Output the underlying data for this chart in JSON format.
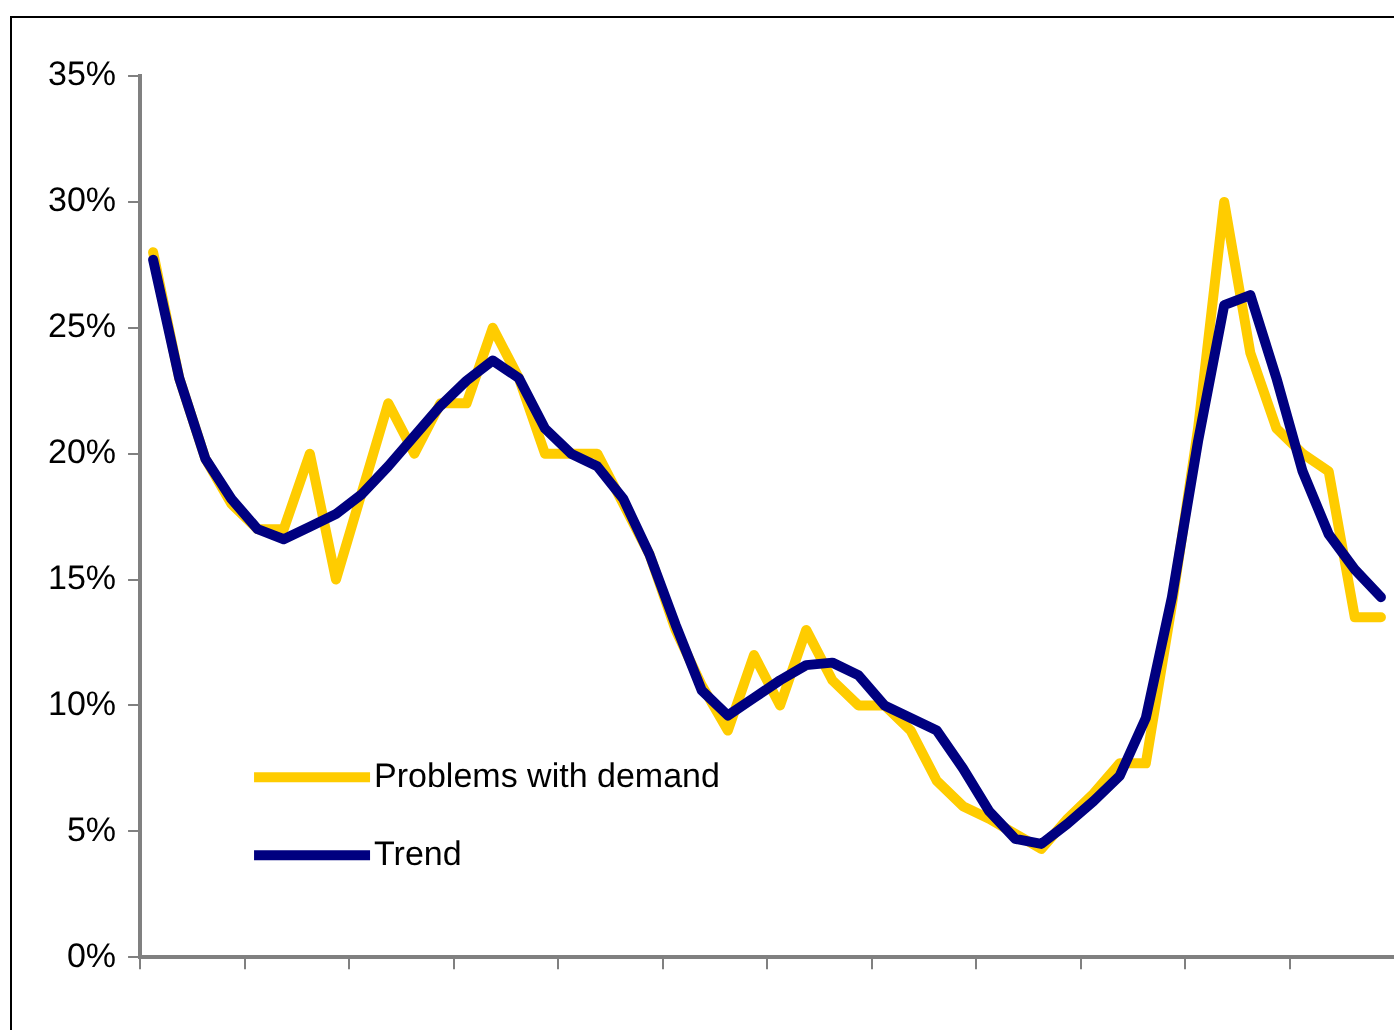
{
  "chart_data": {
    "type": "line",
    "categories": [
      null,
      null,
      null,
      null,
      null,
      null,
      null,
      null,
      null,
      null,
      null,
      null,
      null,
      null,
      null,
      null,
      null,
      null,
      null,
      null,
      null,
      null,
      null,
      null,
      null,
      null,
      null,
      null,
      null,
      null,
      null,
      null,
      null,
      null,
      null,
      null,
      null,
      null,
      null,
      null,
      null,
      null,
      null,
      null,
      null,
      null,
      null,
      null
    ],
    "series": [
      {
        "name": "Problems with demand",
        "color": "#ffcc00",
        "values": [
          28,
          23,
          19.8,
          18,
          17,
          17,
          20,
          15,
          18.5,
          22,
          20,
          22,
          22,
          25,
          23,
          20,
          20,
          20,
          18,
          16,
          13,
          10.8,
          9,
          12,
          10,
          13,
          11,
          10,
          10,
          9,
          7,
          6,
          5.5,
          4.9,
          4.3,
          5.5,
          6.5,
          7.7,
          7.7,
          14,
          21,
          30,
          24,
          21,
          20,
          19.3,
          13.5,
          13.5
        ]
      },
      {
        "name": "Trend",
        "color": "#000080",
        "values": [
          27.7,
          23,
          19.8,
          18.2,
          17,
          16.6,
          17.1,
          17.6,
          18.4,
          19.5,
          20.7,
          21.9,
          22.9,
          23.7,
          23,
          21,
          20,
          19.5,
          18.2,
          16,
          13.2,
          10.6,
          9.6,
          10.3,
          11,
          11.6,
          11.7,
          11.2,
          10,
          9.5,
          9,
          7.5,
          5.8,
          4.7,
          4.5,
          5.3,
          6.2,
          7.2,
          9.5,
          14.3,
          20.5,
          25.9,
          26.3,
          23,
          19.3,
          16.8,
          15.4,
          14.3
        ]
      }
    ],
    "ylim": [
      0,
      35
    ],
    "yticks": [
      {
        "value": 0,
        "label": "0%"
      },
      {
        "value": 5,
        "label": "5%"
      },
      {
        "value": 10,
        "label": "10%"
      },
      {
        "value": 15,
        "label": "15%"
      },
      {
        "value": 20,
        "label": "20%"
      },
      {
        "value": 25,
        "label": "25%"
      },
      {
        "value": 30,
        "label": "30%"
      },
      {
        "value": 35,
        "label": "35%"
      }
    ],
    "grid": false,
    "legend": "bottom left",
    "marker": "none",
    "line_style": "solid"
  }
}
